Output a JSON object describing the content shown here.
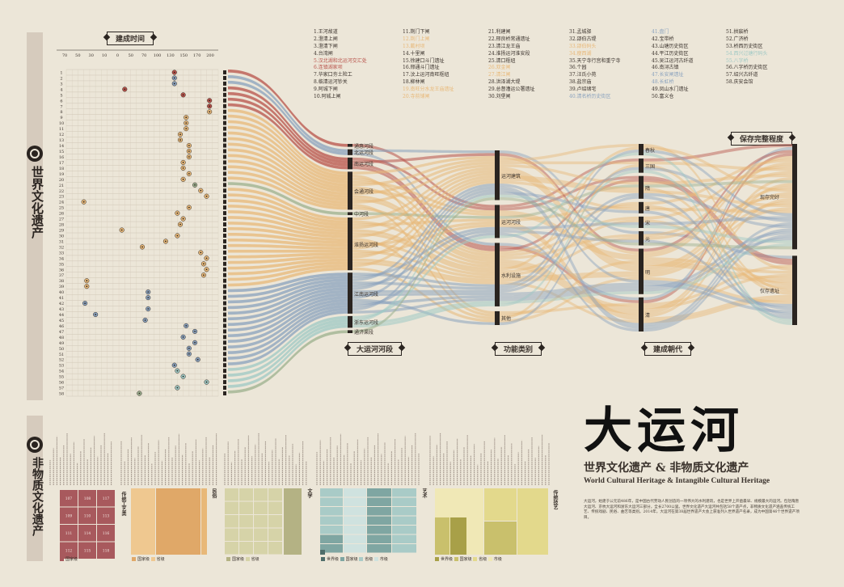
{
  "section_world": "世界文化遗产",
  "section_intangible": "非物质文化遗产",
  "main_title": "大运河",
  "subtitle_cn": "世界文化遗产 & 非物质文化遗产",
  "subtitle_en": "World Cultural Heritage & Intangible Cultural Heritage",
  "intro": "大运河，始建于公元前486年，是中国古代劳动人民创造的一项伟大的水利建筑，也是世界上开凿最早、规模最大的运河。包括隋唐大运河、京杭大运河和浙东大运河三部分，全长2700公里。世界文化遗产大运河共包括58个遗产点，非物质文化遗产涵盖传统工艺、传统戏剧、民俗、曲艺等类别。2014年，大运河在第38届世界遗产大会上获准列入世界遗产名录，成为中国第46个世界遗产项目。",
  "tags": {
    "year": "建成时间",
    "section": "大运河河段",
    "func": "功能类别",
    "dynasty": "建成朝代",
    "state": "保存完整程度"
  },
  "chart_data": {
    "type": "scatter",
    "x_ticks": [
      "70",
      "50",
      "30",
      "10",
      "0",
      "50",
      "70",
      "100",
      "130",
      "150",
      "170",
      "200"
    ],
    "sites": [
      "1.王河故道",
      "2.澄清上闸",
      "3.澄清下闸",
      "4.台湾闸",
      "5.汉北湖和北运河交汇处",
      "6.连镇湖家坝",
      "7.华家口夯土险工",
      "8.临清运河钞关",
      "9.阿城下闸",
      "10.阿城上闸",
      "11.荆门下闸",
      "12.荆门上闸",
      "13.戴村坝",
      "14.十里闸",
      "15.徐建口斗门遗址",
      "16.邢通斗门遗址",
      "17.汶上运河南旺枢纽",
      "18.柳林闸",
      "19.南旺分水龙王庙遗址",
      "20.寺前铺闸",
      "21.利建闸",
      "22.邢良桥常通遗址",
      "23.清江龙王庙",
      "24.淮扬运河淮安段",
      "25.清口枢纽",
      "26.双金闸",
      "27.清江闸",
      "28.洪泽湖大堤",
      "29.总督漕运公署遗址",
      "30.刘堡闸",
      "31.孟城驿",
      "32.邵伯古堤",
      "33.邵伯码头",
      "34.瘦西湖",
      "35.天宁寺行宫和重宁寺",
      "36.个园",
      "37.汪氏小苑",
      "38.盐宗庙",
      "39.卢绍绪宅",
      "40.清名桥历史街区",
      "41.盘门",
      "42.宝带桥",
      "43.山塘历史街区",
      "44.平江历史街区",
      "45.吴江运河古纤道",
      "46.南浔古镇",
      "47.长安闸遗址",
      "48.长虹桥",
      "49.凤山水门遗址",
      "50.富义仓",
      "51.拱宸桥",
      "52.广济桥",
      "53.桥西历史街区",
      "54.西兴过塘行码头",
      "55.八字桥",
      "56.八字桥历史街区",
      "57.绍兴古纤道",
      "58.庆安会馆"
    ],
    "sections": [
      "通惠河段",
      "北运河段",
      "南运河段",
      "会通河段",
      "中河段",
      "淮扬运河段",
      "江南运河段",
      "浙东运河段",
      "通济渠段"
    ],
    "functions": [
      "运河建筑",
      "运河河段",
      "水利设施",
      "其他"
    ],
    "dynasties": [
      "春秋",
      "三国",
      "隋",
      "唐",
      "宋",
      "元",
      "明",
      "清"
    ],
    "states": [
      "现存完好",
      "仅存遗址"
    ],
    "intangible": [
      {
        "name": "传统工艺类",
        "items": [
          "107",
          "108",
          "117",
          "109",
          "110",
          "113",
          "111",
          "114",
          "116",
          "112",
          "115",
          "118"
        ]
      },
      {
        "name": "民俗",
        "items": [
          "国家级",
          "省级"
        ]
      },
      {
        "name": "文学",
        "items": [
          "国家级",
          "省级"
        ]
      },
      {
        "name": "艺术",
        "items": [
          "世界级",
          "国家级",
          "省级",
          "市级"
        ]
      },
      {
        "name": "传统技艺",
        "items": [
          "世界级",
          "国家级",
          "省级",
          "市级"
        ]
      }
    ]
  },
  "colors": {
    "red": "#b8524a",
    "blue": "#8aa2be",
    "orange": "#e8b878",
    "green": "#9cb08e",
    "teal": "#9ec8c4",
    "purple": "#b3a5c2",
    "gray": "#b4b0aa",
    "dark": "#2a2420"
  }
}
